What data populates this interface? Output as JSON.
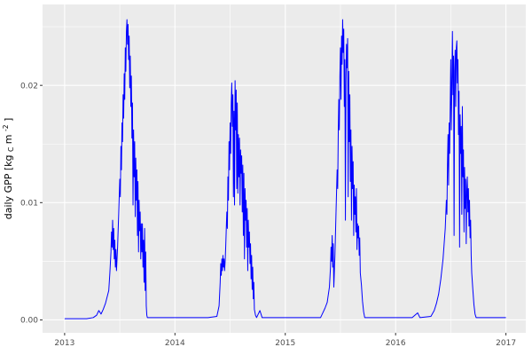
{
  "figure": {
    "kind": "ggplot-line-chart",
    "background": "#FFFFFF"
  },
  "chart_data": {
    "type": "line",
    "title": "",
    "xlabel": "",
    "ylabel": "daily GPP [kg_C m^-2]",
    "ylabel_parts": {
      "pre": "daily GPP [kg",
      "sub": "C",
      "mid": "m",
      "sup": "-2",
      "post": "]"
    },
    "legend_position": "none",
    "panel_background": "#EBEBEB",
    "grid_color": "#FFFFFF",
    "line_color": "#0000FF",
    "tick_mark_color": "#333333",
    "tick_label_color": "#4D4D4D",
    "grid": "on",
    "xlim": [
      2012.8,
      2017.18
    ],
    "ylim": [
      -0.0011,
      0.0269
    ],
    "x_ticks": {
      "values": [
        2013,
        2014,
        2015,
        2016,
        2017
      ],
      "labels": [
        "2013",
        "2014",
        "2015",
        "2016",
        "2017"
      ]
    },
    "x_minor": [
      2013.5,
      2014.5,
      2015.5,
      2016.5
    ],
    "y_ticks": {
      "values": [
        0.0,
        0.01,
        0.02
      ],
      "labels": [
        "0.00",
        "0.01",
        "0.02"
      ]
    },
    "y_minor": [
      0.005,
      0.015,
      0.025
    ],
    "series": [
      {
        "name": "daily GPP",
        "color": "#0000FF",
        "points": [
          [
            2013.0,
            0.0001
          ],
          [
            2013.1,
            0.0001
          ],
          [
            2013.2,
            0.0001
          ],
          [
            2013.26,
            0.0002
          ],
          [
            2013.29,
            0.0004
          ],
          [
            2013.31,
            0.0008
          ],
          [
            2013.33,
            0.0005
          ],
          [
            2013.35,
            0.0009
          ],
          [
            2013.37,
            0.0014
          ],
          [
            2013.4,
            0.0025
          ],
          [
            2013.41,
            0.004
          ],
          [
            2013.42,
            0.0058
          ],
          [
            2013.425,
            0.0075
          ],
          [
            2013.43,
            0.0062
          ],
          [
            2013.435,
            0.0085
          ],
          [
            2013.44,
            0.006
          ],
          [
            2013.445,
            0.0078
          ],
          [
            2013.45,
            0.0052
          ],
          [
            2013.455,
            0.0068
          ],
          [
            2013.46,
            0.0045
          ],
          [
            2013.465,
            0.006
          ],
          [
            2013.47,
            0.0042
          ],
          [
            2013.48,
            0.0062
          ],
          [
            2013.49,
            0.009
          ],
          [
            2013.5,
            0.012
          ],
          [
            2013.505,
            0.0105
          ],
          [
            2013.51,
            0.0148
          ],
          [
            2013.515,
            0.0128
          ],
          [
            2013.52,
            0.0168
          ],
          [
            2013.525,
            0.0152
          ],
          [
            2013.53,
            0.0192
          ],
          [
            2013.535,
            0.0172
          ],
          [
            2013.54,
            0.021
          ],
          [
            2013.545,
            0.0188
          ],
          [
            2013.55,
            0.0232
          ],
          [
            2013.555,
            0.0212
          ],
          [
            2013.56,
            0.0246
          ],
          [
            2013.565,
            0.0256
          ],
          [
            2013.57,
            0.0235
          ],
          [
            2013.575,
            0.0252
          ],
          [
            2013.58,
            0.0222
          ],
          [
            2013.585,
            0.0242
          ],
          [
            2013.59,
            0.0198
          ],
          [
            2013.595,
            0.0225
          ],
          [
            2013.6,
            0.0182
          ],
          [
            2013.605,
            0.0208
          ],
          [
            2013.61,
            0.0155
          ],
          [
            2013.615,
            0.0185
          ],
          [
            2013.62,
            0.0098
          ],
          [
            2013.625,
            0.0162
          ],
          [
            2013.63,
            0.0122
          ],
          [
            2013.635,
            0.0152
          ],
          [
            2013.64,
            0.0088
          ],
          [
            2013.645,
            0.0138
          ],
          [
            2013.65,
            0.0102
          ],
          [
            2013.655,
            0.0128
          ],
          [
            2013.66,
            0.0072
          ],
          [
            2013.665,
            0.0118
          ],
          [
            2013.67,
            0.0058
          ],
          [
            2013.675,
            0.0102
          ],
          [
            2013.68,
            0.0076
          ],
          [
            2013.685,
            0.0092
          ],
          [
            2013.69,
            0.0052
          ],
          [
            2013.695,
            0.0082
          ],
          [
            2013.7,
            0.0058
          ],
          [
            2013.705,
            0.0082
          ],
          [
            2013.71,
            0.0045
          ],
          [
            2013.715,
            0.0068
          ],
          [
            2013.72,
            0.0032
          ],
          [
            2013.725,
            0.0078
          ],
          [
            2013.73,
            0.0025
          ],
          [
            2013.735,
            0.0058
          ],
          [
            2013.74,
            0.0012
          ],
          [
            2013.745,
            0.0004
          ],
          [
            2013.75,
            0.0002
          ],
          [
            2013.85,
            0.0002
          ],
          [
            2014.0,
            0.0002
          ],
          [
            2014.15,
            0.0002
          ],
          [
            2014.3,
            0.0002
          ],
          [
            2014.38,
            0.0003
          ],
          [
            2014.4,
            0.0012
          ],
          [
            2014.41,
            0.0032
          ],
          [
            2014.415,
            0.0048
          ],
          [
            2014.42,
            0.0038
          ],
          [
            2014.425,
            0.0052
          ],
          [
            2014.43,
            0.0042
          ],
          [
            2014.435,
            0.0055
          ],
          [
            2014.44,
            0.0045
          ],
          [
            2014.445,
            0.0052
          ],
          [
            2014.45,
            0.0042
          ],
          [
            2014.455,
            0.005
          ],
          [
            2014.46,
            0.0062
          ],
          [
            2014.47,
            0.0092
          ],
          [
            2014.475,
            0.0078
          ],
          [
            2014.48,
            0.0122
          ],
          [
            2014.485,
            0.0102
          ],
          [
            2014.49,
            0.0152
          ],
          [
            2014.495,
            0.0128
          ],
          [
            2014.5,
            0.0168
          ],
          [
            2014.505,
            0.0142
          ],
          [
            2014.51,
            0.0185
          ],
          [
            2014.515,
            0.0202
          ],
          [
            2014.52,
            0.0165
          ],
          [
            2014.525,
            0.0192
          ],
          [
            2014.53,
            0.0105
          ],
          [
            2014.535,
            0.0178
          ],
          [
            2014.54,
            0.0098
          ],
          [
            2014.545,
            0.0204
          ],
          [
            2014.55,
            0.0162
          ],
          [
            2014.555,
            0.0196
          ],
          [
            2014.56,
            0.0112
          ],
          [
            2014.565,
            0.0185
          ],
          [
            2014.57,
            0.0108
          ],
          [
            2014.575,
            0.0158
          ],
          [
            2014.58,
            0.0122
          ],
          [
            2014.585,
            0.0155
          ],
          [
            2014.59,
            0.0098
          ],
          [
            2014.595,
            0.0145
          ],
          [
            2014.6,
            0.0125
          ],
          [
            2014.605,
            0.014
          ],
          [
            2014.61,
            0.0092
          ],
          [
            2014.615,
            0.0132
          ],
          [
            2014.62,
            0.0072
          ],
          [
            2014.625,
            0.0125
          ],
          [
            2014.63,
            0.0052
          ],
          [
            2014.635,
            0.0112
          ],
          [
            2014.64,
            0.0085
          ],
          [
            2014.645,
            0.0102
          ],
          [
            2014.65,
            0.0062
          ],
          [
            2014.655,
            0.0095
          ],
          [
            2014.66,
            0.0042
          ],
          [
            2014.665,
            0.0085
          ],
          [
            2014.67,
            0.0062
          ],
          [
            2014.675,
            0.0075
          ],
          [
            2014.68,
            0.0048
          ],
          [
            2014.685,
            0.0065
          ],
          [
            2014.69,
            0.0035
          ],
          [
            2014.695,
            0.0055
          ],
          [
            2014.7,
            0.0026
          ],
          [
            2014.705,
            0.0045
          ],
          [
            2014.71,
            0.0018
          ],
          [
            2014.715,
            0.0032
          ],
          [
            2014.72,
            0.0009
          ],
          [
            2014.73,
            0.0004
          ],
          [
            2014.74,
            0.0002
          ],
          [
            2014.77,
            0.0008
          ],
          [
            2014.79,
            0.0002
          ],
          [
            2014.9,
            0.0002
          ],
          [
            2015.05,
            0.0002
          ],
          [
            2015.2,
            0.0002
          ],
          [
            2015.32,
            0.0002
          ],
          [
            2015.34,
            0.0006
          ],
          [
            2015.36,
            0.001
          ],
          [
            2015.38,
            0.0015
          ],
          [
            2015.4,
            0.0028
          ],
          [
            2015.41,
            0.0045
          ],
          [
            2015.415,
            0.0062
          ],
          [
            2015.42,
            0.005
          ],
          [
            2015.425,
            0.0072
          ],
          [
            2015.43,
            0.0045
          ],
          [
            2015.435,
            0.0065
          ],
          [
            2015.44,
            0.0028
          ],
          [
            2015.45,
            0.0055
          ],
          [
            2015.46,
            0.0092
          ],
          [
            2015.47,
            0.0128
          ],
          [
            2015.475,
            0.0112
          ],
          [
            2015.48,
            0.0158
          ],
          [
            2015.485,
            0.0188
          ],
          [
            2015.49,
            0.0162
          ],
          [
            2015.495,
            0.0208
          ],
          [
            2015.5,
            0.0232
          ],
          [
            2015.505,
            0.0188
          ],
          [
            2015.51,
            0.0242
          ],
          [
            2015.515,
            0.0218
          ],
          [
            2015.52,
            0.0256
          ],
          [
            2015.525,
            0.0228
          ],
          [
            2015.53,
            0.0248
          ],
          [
            2015.535,
            0.0182
          ],
          [
            2015.54,
            0.0222
          ],
          [
            2015.545,
            0.0085
          ],
          [
            2015.55,
            0.0202
          ],
          [
            2015.555,
            0.0235
          ],
          [
            2015.56,
            0.0215
          ],
          [
            2015.565,
            0.024
          ],
          [
            2015.57,
            0.0105
          ],
          [
            2015.575,
            0.0212
          ],
          [
            2015.58,
            0.0152
          ],
          [
            2015.585,
            0.0192
          ],
          [
            2015.59,
            0.0118
          ],
          [
            2015.595,
            0.0162
          ],
          [
            2015.6,
            0.0085
          ],
          [
            2015.605,
            0.0148
          ],
          [
            2015.61,
            0.0112
          ],
          [
            2015.615,
            0.0135
          ],
          [
            2015.62,
            0.0072
          ],
          [
            2015.625,
            0.0115
          ],
          [
            2015.63,
            0.009
          ],
          [
            2015.635,
            0.0105
          ],
          [
            2015.64,
            0.0075
          ],
          [
            2015.645,
            0.0112
          ],
          [
            2015.65,
            0.006
          ],
          [
            2015.655,
            0.0082
          ],
          [
            2015.66,
            0.007
          ],
          [
            2015.665,
            0.008
          ],
          [
            2015.67,
            0.0055
          ],
          [
            2015.675,
            0.007
          ],
          [
            2015.68,
            0.004
          ],
          [
            2015.69,
            0.003
          ],
          [
            2015.7,
            0.0016
          ],
          [
            2015.71,
            0.0007
          ],
          [
            2015.72,
            0.0002
          ],
          [
            2015.85,
            0.0002
          ],
          [
            2016.0,
            0.0002
          ],
          [
            2016.15,
            0.0002
          ],
          [
            2016.2,
            0.0006
          ],
          [
            2016.22,
            0.0002
          ],
          [
            2016.32,
            0.0003
          ],
          [
            2016.35,
            0.0008
          ],
          [
            2016.37,
            0.0014
          ],
          [
            2016.39,
            0.0022
          ],
          [
            2016.41,
            0.0035
          ],
          [
            2016.43,
            0.0052
          ],
          [
            2016.45,
            0.0078
          ],
          [
            2016.46,
            0.0102
          ],
          [
            2016.465,
            0.009
          ],
          [
            2016.47,
            0.0132
          ],
          [
            2016.475,
            0.0158
          ],
          [
            2016.48,
            0.0115
          ],
          [
            2016.485,
            0.0168
          ],
          [
            2016.49,
            0.0142
          ],
          [
            2016.495,
            0.0182
          ],
          [
            2016.5,
            0.0222
          ],
          [
            2016.505,
            0.0162
          ],
          [
            2016.51,
            0.0202
          ],
          [
            2016.515,
            0.0246
          ],
          [
            2016.52,
            0.0192
          ],
          [
            2016.525,
            0.0225
          ],
          [
            2016.53,
            0.0072
          ],
          [
            2016.535,
            0.0212
          ],
          [
            2016.54,
            0.023
          ],
          [
            2016.545,
            0.0182
          ],
          [
            2016.55,
            0.0232
          ],
          [
            2016.555,
            0.0238
          ],
          [
            2016.56,
            0.0202
          ],
          [
            2016.565,
            0.0222
          ],
          [
            2016.57,
            0.0158
          ],
          [
            2016.575,
            0.0195
          ],
          [
            2016.58,
            0.0062
          ],
          [
            2016.585,
            0.0175
          ],
          [
            2016.59,
            0.0142
          ],
          [
            2016.595,
            0.0165
          ],
          [
            2016.6,
            0.009
          ],
          [
            2016.605,
            0.0182
          ],
          [
            2016.61,
            0.0122
          ],
          [
            2016.615,
            0.0145
          ],
          [
            2016.62,
            0.0075
          ],
          [
            2016.625,
            0.013
          ],
          [
            2016.63,
            0.0095
          ],
          [
            2016.635,
            0.012
          ],
          [
            2016.64,
            0.0065
          ],
          [
            2016.645,
            0.011
          ],
          [
            2016.65,
            0.0122
          ],
          [
            2016.655,
            0.0092
          ],
          [
            2016.66,
            0.0112
          ],
          [
            2016.665,
            0.008
          ],
          [
            2016.67,
            0.0102
          ],
          [
            2016.675,
            0.007
          ],
          [
            2016.68,
            0.0085
          ],
          [
            2016.685,
            0.0055
          ],
          [
            2016.69,
            0.004
          ],
          [
            2016.7,
            0.0026
          ],
          [
            2016.71,
            0.0013
          ],
          [
            2016.72,
            0.0005
          ],
          [
            2016.73,
            0.0002
          ],
          [
            2016.85,
            0.0002
          ],
          [
            2017.0,
            0.0002
          ]
        ]
      }
    ]
  }
}
